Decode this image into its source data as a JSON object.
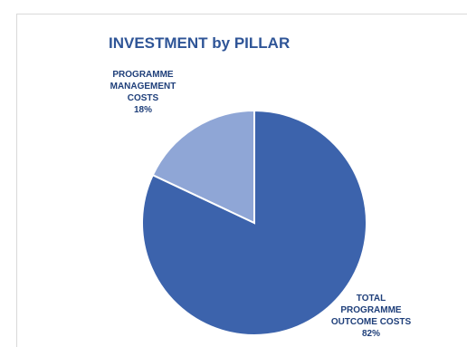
{
  "chart_data": {
    "type": "pie",
    "title": "INVESTMENT by PILLAR",
    "slices": [
      {
        "label_lines": [
          "TOTAL",
          "PROGRAMME",
          "OUTCOME COSTS"
        ],
        "value": 82,
        "value_label": "82%",
        "color": "#3c63ac"
      },
      {
        "label_lines": [
          "PROGRAMME",
          "MANAGEMENT",
          "COSTS"
        ],
        "value": 18,
        "value_label": "18%",
        "color": "#8fa6d6"
      }
    ],
    "legend": false
  }
}
